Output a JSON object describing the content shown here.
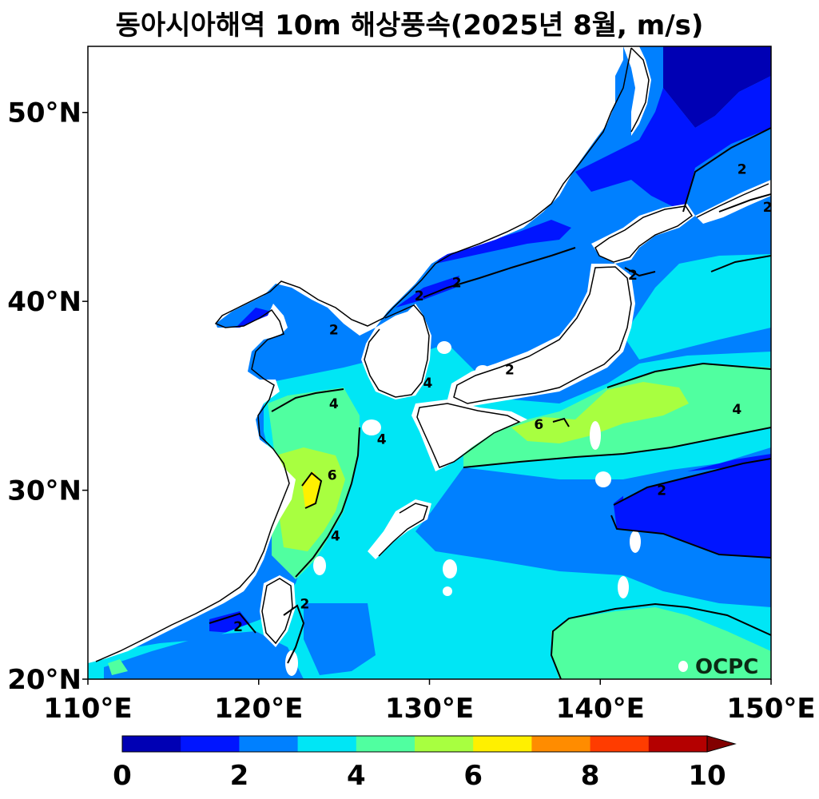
{
  "title": "동아시아해역 10m 해상풍속(2025년 8월, m/s)",
  "watermark": "OCPC",
  "map": {
    "lon_range": [
      110,
      150
    ],
    "lat_range": [
      20,
      53.5
    ],
    "x_ticks": [
      {
        "lon": 110,
        "label": "110°E"
      },
      {
        "lon": 120,
        "label": "120°E"
      },
      {
        "lon": 130,
        "label": "130°E"
      },
      {
        "lon": 140,
        "label": "140°E"
      },
      {
        "lon": 150,
        "label": "150°E"
      }
    ],
    "y_ticks": [
      {
        "lat": 20,
        "label": "20°N"
      },
      {
        "lat": 30,
        "label": "30°N"
      },
      {
        "lat": 40,
        "label": "40°N"
      },
      {
        "lat": 50,
        "label": "50°N"
      }
    ],
    "contour_labels": [
      {
        "text": "2",
        "lon": 148.3,
        "lat": 47.0
      },
      {
        "text": "2",
        "lon": 149.8,
        "lat": 45.0
      },
      {
        "text": "2",
        "lon": 131.6,
        "lat": 41.0
      },
      {
        "text": "2",
        "lon": 129.4,
        "lat": 40.3
      },
      {
        "text": "2",
        "lon": 141.9,
        "lat": 41.4
      },
      {
        "text": "2",
        "lon": 124.4,
        "lat": 38.5
      },
      {
        "text": "2",
        "lon": 134.7,
        "lat": 36.4
      },
      {
        "text": "4",
        "lon": 129.9,
        "lat": 35.7
      },
      {
        "text": "4",
        "lon": 124.4,
        "lat": 34.6
      },
      {
        "text": "4",
        "lon": 127.2,
        "lat": 32.7
      },
      {
        "text": "6",
        "lon": 136.4,
        "lat": 33.5
      },
      {
        "text": "4",
        "lon": 148.0,
        "lat": 34.3
      },
      {
        "text": "6",
        "lon": 124.3,
        "lat": 30.8
      },
      {
        "text": "4",
        "lon": 124.5,
        "lat": 27.6
      },
      {
        "text": "2",
        "lon": 143.6,
        "lat": 30.0
      },
      {
        "text": "2",
        "lon": 122.7,
        "lat": 24.0
      },
      {
        "text": "2",
        "lon": 118.8,
        "lat": 22.8
      }
    ]
  },
  "colorbar": {
    "levels": [
      0,
      1,
      2,
      3,
      4,
      5,
      6,
      7,
      8,
      9,
      10
    ],
    "colors": [
      "#0000b4",
      "#0015ff",
      "#0080ff",
      "#00e6f5",
      "#50ffa0",
      "#a8ff40",
      "#fff000",
      "#ff8c00",
      "#ff3c00",
      "#b40000"
    ],
    "extend_color": "#820000",
    "tick_labels": [
      {
        "value": 0,
        "label": "0"
      },
      {
        "value": 2,
        "label": "2"
      },
      {
        "value": 4,
        "label": "4"
      },
      {
        "value": 6,
        "label": "6"
      },
      {
        "value": 8,
        "label": "8"
      },
      {
        "value": 10,
        "label": "10"
      }
    ]
  },
  "colors": {
    "land": "#ffffff",
    "coast": "#000000",
    "contour": "#000000"
  }
}
